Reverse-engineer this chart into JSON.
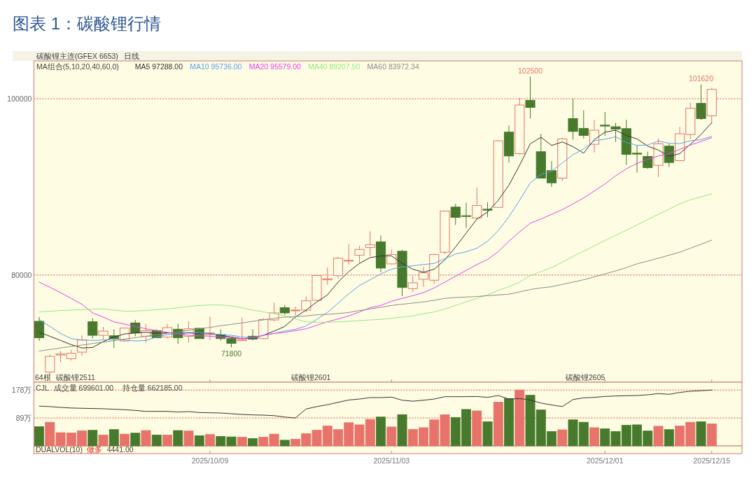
{
  "chart_data": [
    {
      "type": "candlestick",
      "title": "图表 1：碳酸锂行情",
      "categories": [
        null,
        null,
        null,
        null,
        null,
        null,
        null,
        null,
        null,
        null,
        null,
        null,
        null,
        null,
        null,
        null,
        "2025/10/09",
        null,
        null,
        null,
        null,
        null,
        null,
        null,
        null,
        null,
        null,
        null,
        null,
        null,
        null,
        null,
        null,
        "2025/11/03",
        null,
        null,
        null,
        null,
        null,
        null,
        null,
        null,
        null,
        null,
        null,
        null,
        null,
        null,
        null,
        null,
        null,
        null,
        null,
        "2025/12/01",
        null,
        null,
        null,
        null,
        null,
        null,
        null,
        null,
        null,
        "2025/12/15"
      ],
      "tick_labels": "y",
      "ohlc": [
        [
          74755,
          75233,
          72530,
          72900
        ],
        [
          69007,
          70993,
          68556,
          70782
        ],
        [
          70940,
          71391,
          70146,
          71046
        ],
        [
          70517,
          71524,
          70331,
          71126
        ],
        [
          71258,
          73166,
          70861,
          72636
        ],
        [
          74702,
          75099,
          72795,
          73166
        ],
        [
          73166,
          74120,
          72715,
          73643
        ],
        [
          73113,
          73855,
          71735,
          72795
        ],
        [
          72530,
          74040,
          72450,
          73987
        ],
        [
          74570,
          74914,
          73060,
          73431
        ],
        [
          73060,
          74490,
          72318,
          73696
        ],
        [
          73696,
          73855,
          72847,
          72900
        ],
        [
          72980,
          74490,
          72795,
          74040
        ],
        [
          73855,
          74490,
          72185,
          72900
        ],
        [
          73060,
          74755,
          72371,
          73908
        ],
        [
          73961,
          74040,
          72795,
          72795
        ],
        [
          73245,
          75285,
          72636,
          73431
        ],
        [
          73245,
          73855,
          72583,
          72795
        ],
        [
          72795,
          72900,
          71800,
          72265
        ],
        [
          72583,
          75179,
          72530,
          72689
        ],
        [
          73060,
          73855,
          72583,
          72742
        ],
        [
          72795,
          75099,
          72715,
          74968
        ],
        [
          74915,
          76874,
          74755,
          75709
        ],
        [
          76292,
          76610,
          75497,
          75709
        ],
        [
          75974,
          76424,
          75364,
          76026
        ],
        [
          76026,
          77563,
          75762,
          77086
        ],
        [
          77139,
          80000,
          77086,
          79947
        ],
        [
          79470,
          80848,
          78888,
          79576
        ],
        [
          79947,
          82066,
          79603,
          81907
        ],
        [
          81589,
          83497,
          81192,
          81669
        ],
        [
          82252,
          83311,
          81377,
          82914
        ],
        [
          83126,
          84954,
          82172,
          83444
        ],
        [
          83762,
          84503,
          80318,
          80795
        ],
        [
          81271,
          82914,
          81192,
          82331
        ],
        [
          82702,
          82861,
          77616,
          78596
        ],
        [
          78464,
          79867,
          78093,
          79126
        ],
        [
          79523,
          80927,
          78676,
          80265
        ],
        [
          79417,
          82437,
          79020,
          82331
        ],
        [
          82596,
          87311,
          82384,
          87258
        ],
        [
          87709,
          88080,
          85695,
          86543
        ],
        [
          86729,
          88212,
          85377,
          86649
        ],
        [
          86464,
          89934,
          86305,
          87894
        ],
        [
          87470,
          88265,
          86570,
          87364
        ],
        [
          87682,
          95285,
          87629,
          95232
        ],
        [
          96212,
          96954,
          92768,
          93510
        ],
        [
          93775,
          100132,
          93642,
          99285
        ],
        [
          99815,
          102500,
          97748,
          99020
        ],
        [
          93987,
          96027,
          90993,
          90993
        ],
        [
          91841,
          92927,
          90013,
          90464
        ],
        [
          90993,
          95576,
          90675,
          95444
        ],
        [
          97748,
          100000,
          95364,
          96291
        ],
        [
          96636,
          98676,
          95497,
          95841
        ],
        [
          94834,
          97616,
          93907,
          96424
        ],
        [
          97007,
          98490,
          95762,
          96901
        ],
        [
          96821,
          97272,
          95099,
          96556
        ],
        [
          96609,
          97616,
          92503,
          93695
        ],
        [
          93828,
          94702,
          91603,
          93722
        ],
        [
          93457,
          93987,
          92053,
          92185
        ],
        [
          92450,
          95497,
          91126,
          94887
        ],
        [
          94623,
          94887,
          92265,
          92768
        ],
        [
          92980,
          96821,
          92927,
          96027
        ],
        [
          95947,
          99550,
          95417,
          98914
        ],
        [
          99470,
          101620,
          97589,
          97748
        ],
        [
          98066,
          101245,
          97219,
          101060
        ]
      ],
      "series": [
        {
          "type": "line",
          "name": "MA5 97288.00",
          "color": "#333333",
          "values": [
            73510,
            73060,
            72583,
            72106,
            71735,
            71788,
            72450,
            72980,
            73325,
            73431,
            73510,
            73378,
            73457,
            73378,
            73431,
            73378,
            73378,
            73166,
            72980,
            72795,
            72847,
            73166,
            73643,
            74173,
            75232,
            76026,
            76953,
            77748,
            79205,
            80397,
            81324,
            81987,
            82172,
            82172,
            81324,
            80662,
            80318,
            80662,
            81722,
            83179,
            84768,
            86358,
            87153,
            88477,
            90199,
            92450,
            94887,
            95629,
            94702,
            95099,
            94570,
            93828,
            95364,
            96212,
            96424,
            95841,
            95444,
            94623,
            94172,
            93457,
            93775,
            94834,
            95947,
            97288
          ]
        },
        {
          "type": "line",
          "name": "MA10 95736.00",
          "color": "#5f9ff0",
          "values": [
            74967,
            74172,
            73378,
            72795,
            72636,
            72583,
            72636,
            72715,
            72636,
            72530,
            72583,
            72980,
            73245,
            73378,
            73510,
            73431,
            73325,
            73245,
            73166,
            72980,
            72900,
            73166,
            73378,
            73643,
            73855,
            74226,
            74967,
            75762,
            76821,
            77881,
            78808,
            79470,
            80133,
            80662,
            80927,
            81059,
            81192,
            81324,
            81854,
            82384,
            82649,
            83046,
            83841,
            85033,
            86622,
            88477,
            90464,
            91391,
            91788,
            92715,
            93642,
            94305,
            95232,
            95417,
            95682,
            95046,
            94702,
            94755,
            95205,
            94940,
            94914,
            95232,
            95364,
            95736
          ]
        },
        {
          "type": "line",
          "name": "MA20 95579.00",
          "color": "#f03cf0",
          "values": [
            79205,
            78623,
            78013,
            77351,
            76689,
            75709,
            75232,
            74702,
            74437,
            74173,
            73908,
            73696,
            73510,
            73325,
            73166,
            73113,
            73060,
            72980,
            72900,
            72795,
            72900,
            73166,
            73378,
            73510,
            73696,
            73908,
            74305,
            74702,
            75020,
            75364,
            75815,
            76292,
            76556,
            77033,
            77351,
            77669,
            78013,
            78543,
            79205,
            79867,
            80530,
            81192,
            81775,
            82649,
            83841,
            84901,
            85881,
            86358,
            86888,
            87417,
            88080,
            88742,
            89537,
            90331,
            91258,
            92053,
            92662,
            93113,
            93510,
            93775,
            94252,
            94755,
            95152,
            95579
          ]
        },
        {
          "type": "line",
          "name": "MA40 89207.50",
          "color": "#94e884",
          "values": [
            75815,
            75894,
            75974,
            76026,
            76079,
            76132,
            76159,
            76026,
            75894,
            75920,
            75974,
            76079,
            76159,
            76291,
            76424,
            76556,
            76609,
            76609,
            76503,
            76291,
            76026,
            75815,
            75629,
            75364,
            75020,
            74702,
            74649,
            74649,
            74702,
            74755,
            74834,
            74914,
            74967,
            75099,
            75232,
            75364,
            75629,
            75815,
            76159,
            76556,
            76954,
            77351,
            77748,
            78278,
            78676,
            79205,
            79947,
            80397,
            80848,
            81457,
            82119,
            82702,
            83311,
            83921,
            84503,
            85086,
            85695,
            86305,
            86888,
            87470,
            88080,
            88530,
            88874,
            89207.5
          ]
        },
        {
          "type": "line",
          "name": "MA60 83972.34",
          "color": "#8c8c8c",
          "values": [
            71391,
            71550,
            71735,
            71894,
            72053,
            72239,
            72397,
            72556,
            72742,
            72901,
            73060,
            73245,
            73404,
            73563,
            73748,
            73907,
            74066,
            74252,
            74411,
            74570,
            74755,
            74914,
            75099,
            75232,
            75285,
            75364,
            75497,
            75550,
            75629,
            75762,
            75974,
            76159,
            76344,
            76556,
            76689,
            76821,
            76954,
            77139,
            77351,
            77457,
            77510,
            77563,
            77669,
            77748,
            77828,
            78093,
            78358,
            78543,
            78676,
            78940,
            79205,
            79470,
            79788,
            80132,
            80477,
            80848,
            81272,
            81589,
            81907,
            82252,
            82596,
            83046,
            83497,
            83972.34
          ]
        }
      ],
      "ylim": [
        67850,
        104290
      ],
      "yticks": [
        80000,
        100000
      ],
      "grid": "y",
      "legend": "top left",
      "annotations": [
        "碳酸锂主连(GFEX 6653)",
        "日线",
        "MA组合(5,10,20,40,60,0)",
        "64根",
        "碳酸锂2511",
        "碳酸锂2601",
        "碳酸锂2605",
        {
          "text": "102500",
          "y": 102500
        },
        {
          "text": "71800",
          "y": 71800
        },
        {
          "text": "101620",
          "y": 101620
        }
      ]
    },
    {
      "type": "bar",
      "categories": [
        null,
        null,
        null,
        null,
        null,
        null,
        null,
        null,
        null,
        null,
        null,
        null,
        null,
        null,
        null,
        null,
        "2025/10/09",
        null,
        null,
        null,
        null,
        null,
        null,
        null,
        null,
        null,
        null,
        null,
        null,
        null,
        null,
        null,
        null,
        "2025/11/03",
        null,
        null,
        null,
        null,
        null,
        null,
        null,
        null,
        null,
        null,
        null,
        null,
        null,
        null,
        null,
        null,
        null,
        null,
        null,
        "2025/12/01",
        null,
        null,
        null,
        null,
        null,
        null,
        null,
        null,
        null,
        "2025/12/15"
      ],
      "series": [
        {
          "type": "bar",
          "values": [
            61.1,
            75.4,
            42.2,
            41.5,
            48.3,
            49.8,
            34.7,
            52.0,
            37.7,
            40.7,
            49.0,
            34.7,
            34.7,
            49.0,
            47.5,
            32.4,
            36.2,
            30.2,
            28.7,
            27.9,
            23.4,
            27.9,
            37.7,
            18.1,
            21.1,
            39.2,
            49.8,
            63.4,
            52.0,
            73.9,
            67.1,
            84.5,
            92.0,
            60.3,
            99.6,
            52.8,
            58.1,
            83.0,
            99.6,
            90.5,
            116.2,
            111.6,
            76.9,
            139.5,
            150.8,
            178.0,
            161.4,
            114.6,
            46.0,
            51.3,
            83.0,
            75.4,
            58.1,
            54.3,
            46.0,
            65.6,
            67.1,
            47.5,
            62.6,
            52.0,
            63.4,
            75.4,
            76.9,
            70.0
          ],
          "colors": [
            "#477a2c",
            "#e8736b",
            "#e8736b",
            "#e8736b",
            "#e8736b",
            "#477a2c",
            "#e8736b",
            "#477a2c",
            "#e8736b",
            "#477a2c",
            "#e8736b",
            "#477a2c",
            "#e8736b",
            "#477a2c",
            "#e8736b",
            "#477a2c",
            "#e8736b",
            "#477a2c",
            "#477a2c",
            "#e8736b",
            "#477a2c",
            "#e8736b",
            "#e8736b",
            "#477a2c",
            "#e8736b",
            "#e8736b",
            "#e8736b",
            "#e8736b",
            "#e8736b",
            "#e8736b",
            "#e8736b",
            "#e8736b",
            "#477a2c",
            "#e8736b",
            "#477a2c",
            "#e8736b",
            "#e8736b",
            "#e8736b",
            "#e8736b",
            "#477a2c",
            "#477a2c",
            "#e8736b",
            "#477a2c",
            "#e8736b",
            "#477a2c",
            "#e8736b",
            "#477a2c",
            "#477a2c",
            "#477a2c",
            "#e8736b",
            "#477a2c",
            "#477a2c",
            "#e8736b",
            "#477a2c",
            "#477a2c",
            "#477a2c",
            "#477a2c",
            "#477a2c",
            "#e8736b",
            "#477a2c",
            "#e8736b",
            "#e8736b",
            "#477a2c",
            "#e8736b"
          ]
        },
        {
          "type": "line",
          "color": "#333333",
          "values": [
            126.7,
            125.2,
            122.9,
            120.7,
            119.9,
            119.2,
            118.4,
            116.9,
            115.4,
            113.1,
            110.1,
            110.1,
            110.1,
            107.9,
            109.4,
            106.3,
            105.6,
            104.8,
            102.6,
            100.3,
            98.8,
            98.0,
            96.5,
            92.0,
            89.0,
            117.7,
            125.2,
            131.2,
            138.8,
            146.3,
            149.3,
            153.9,
            153.9,
            155.4,
            145.6,
            142.5,
            145.6,
            149.3,
            156.9,
            156.9,
            156.9,
            157.6,
            154.6,
            160.6,
            149.3,
            150.8,
            146.3,
            136.5,
            130.5,
            125.2,
            147.8,
            153.1,
            154.6,
            157.6,
            159.1,
            159.9,
            160.6,
            162.9,
            166.7,
            164.4,
            170.4,
            174.2,
            175.7,
            178.0
          ]
        }
      ],
      "ylim": [
        0,
        203
      ],
      "yticks": [
        {
          "value": 89,
          "label": "89万"
        },
        {
          "value": 178,
          "label": "178万"
        }
      ],
      "grid": "y",
      "annotations": [
        "CJL",
        "成交量 699601.00",
        "持仓量 662185.00",
        "DUALVOL(10)",
        "做多",
        "4441.00"
      ]
    }
  ]
}
